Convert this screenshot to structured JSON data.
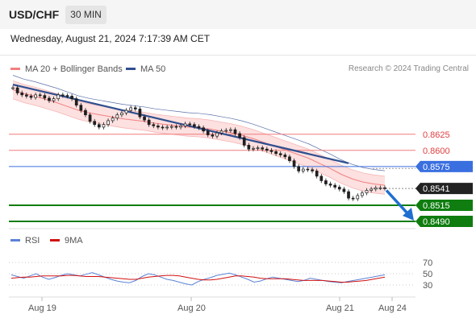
{
  "header": {
    "pair": "USD/CHF",
    "timeframe": "30 MIN",
    "datetime": "Wednesday, August 21, 2024 7:17:39 AM CET"
  },
  "legend": {
    "bollinger": "MA 20 + Bollinger Bands",
    "ma50": "MA 50",
    "credit": "Research © 2024 Trading Central",
    "rsi": "RSI",
    "rsi_ma": "9MA"
  },
  "colors": {
    "bollinger": "#f08080",
    "ma50": "#2f4f8f",
    "resistance": "#f27c7c",
    "pivot": "#3a6fe0",
    "support": "#0f7d0f",
    "price_label": "#222222",
    "candle": "#1f1f1f",
    "rsi": "#5b82d6",
    "rsi_ma": "#d11010"
  },
  "chart_data": {
    "type": "line",
    "instrument": "USD/CHF",
    "timeframe": "30 MIN",
    "x_tick_labels": [
      "Aug 19",
      "Aug 20",
      "Aug 21",
      "Aug 24"
    ],
    "price_levels": [
      {
        "value": 0.8625,
        "label": "0.8625",
        "kind": "resistance"
      },
      {
        "value": 0.86,
        "label": "0.8600",
        "kind": "resistance"
      },
      {
        "value": 0.8575,
        "label": "0.8575",
        "kind": "pivot"
      },
      {
        "value": 0.8541,
        "label": "0.8541",
        "kind": "last_price"
      },
      {
        "value": 0.8515,
        "label": "0.8515",
        "kind": "support"
      },
      {
        "value": 0.849,
        "label": "0.8490",
        "kind": "support"
      }
    ],
    "price_series": [
      0.8697,
      0.8689,
      0.8686,
      0.8684,
      0.8682,
      0.8686,
      0.8685,
      0.8681,
      0.8677,
      0.868,
      0.8686,
      0.8685,
      0.8684,
      0.868,
      0.867,
      0.8662,
      0.8655,
      0.8645,
      0.864,
      0.8636,
      0.864,
      0.8646,
      0.865,
      0.8655,
      0.8658,
      0.8662,
      0.8666,
      0.8664,
      0.8652,
      0.8647,
      0.864,
      0.8638,
      0.8636,
      0.8635,
      0.8636,
      0.8637,
      0.8636,
      0.8638,
      0.8641,
      0.864,
      0.8637,
      0.8635,
      0.863,
      0.8624,
      0.8622,
      0.8627,
      0.863,
      0.8631,
      0.8632,
      0.8626,
      0.862,
      0.8608,
      0.8602,
      0.8603,
      0.8604,
      0.8602,
      0.86,
      0.8598,
      0.8595,
      0.8593,
      0.859,
      0.8584,
      0.8575,
      0.8568,
      0.8571,
      0.857,
      0.8568,
      0.856,
      0.8553,
      0.8548,
      0.8546,
      0.8543,
      0.854,
      0.8536,
      0.8526,
      0.8525,
      0.853,
      0.8534,
      0.8538,
      0.854,
      0.8542,
      0.8542,
      0.8541
    ],
    "ma50_line": {
      "from": [
        0,
        0.8702
      ],
      "to": [
        74,
        0.858
      ]
    },
    "ma20_series": [
      0.8694,
      0.8688,
      0.8684,
      0.8679,
      0.8674,
      0.8668,
      0.8662,
      0.8658,
      0.8655,
      0.8652,
      0.8649,
      0.8647,
      0.8645,
      0.8642,
      0.864,
      0.8638,
      0.8636,
      0.8635,
      0.8633,
      0.863,
      0.8627,
      0.8623,
      0.8618,
      0.8612,
      0.8606,
      0.86,
      0.8594,
      0.8588,
      0.858,
      0.8572,
      0.8563,
      0.8556,
      0.8551,
      0.8548,
      0.8546
    ],
    "bollinger_band_width": 0.0014,
    "forecast_arrow": {
      "from_value": 0.8538,
      "to_value": 0.8495
    },
    "y_range": [
      0.848,
      0.8712
    ],
    "rsi": {
      "levels": [
        70,
        50,
        30
      ],
      "y_range": [
        10,
        90
      ],
      "rsi_series": [
        48,
        45,
        42,
        46,
        50,
        44,
        40,
        43,
        47,
        50,
        48,
        46,
        49,
        52,
        48,
        44,
        40,
        37,
        35,
        34,
        38,
        45,
        50,
        48,
        44,
        40,
        38,
        35,
        32,
        30,
        36,
        40,
        43,
        47,
        49,
        51,
        48,
        44,
        40,
        35,
        37,
        41,
        44,
        42,
        40,
        38,
        36,
        38,
        42,
        40,
        38,
        36,
        35,
        34,
        36,
        38,
        40,
        42,
        44,
        46,
        48
      ],
      "ma_series": [
        42,
        43,
        44,
        44,
        45,
        46,
        46,
        46,
        46,
        47,
        47,
        46,
        45,
        45,
        45,
        44,
        43,
        42,
        41,
        40,
        40,
        42,
        44,
        45,
        46,
        47,
        47,
        46,
        44,
        42,
        40,
        39,
        39,
        40,
        42,
        44,
        46,
        46,
        45,
        44,
        42,
        41,
        41,
        41,
        41,
        40,
        39,
        38,
        38,
        38,
        38,
        37,
        36,
        35,
        35,
        36,
        37,
        38,
        40,
        42,
        44
      ]
    }
  }
}
